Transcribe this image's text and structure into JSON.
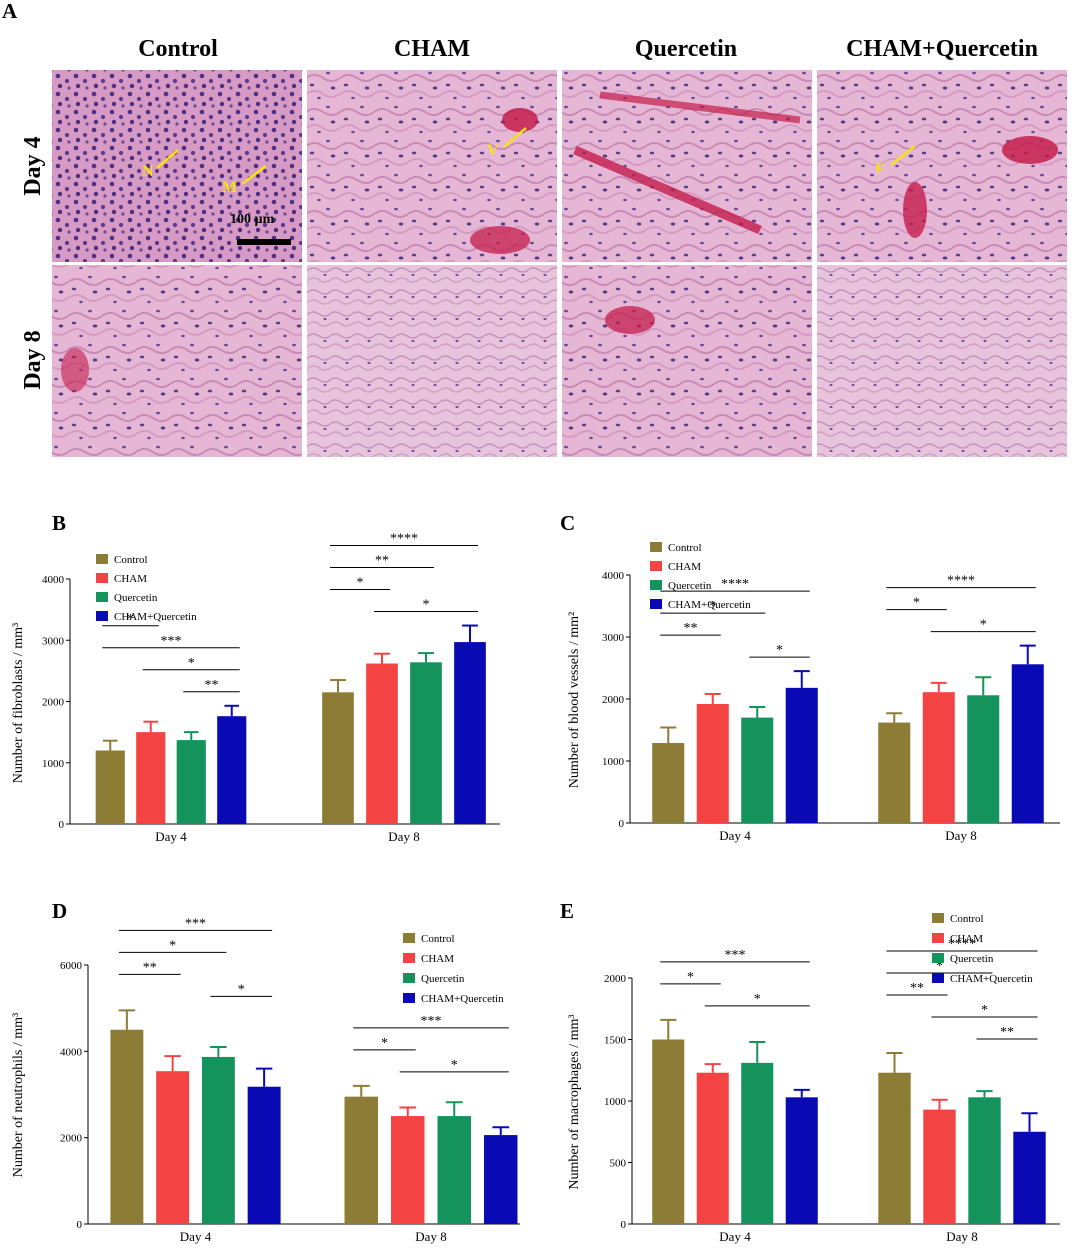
{
  "panel_a": {
    "letter": "A",
    "columns": [
      "Control",
      "CHAM",
      "Quercetin",
      "CHAM+Quercetin"
    ],
    "rows": [
      "Day 4",
      "Day 8"
    ],
    "scale_bar": "100 µm",
    "annotations": [
      {
        "col": 0,
        "row": 0,
        "label": "N"
      },
      {
        "col": 0,
        "row": 0,
        "label": "M"
      },
      {
        "col": 1,
        "row": 0,
        "label": "V"
      },
      {
        "col": 3,
        "row": 0,
        "label": "F"
      }
    ]
  },
  "colors": {
    "Control": "#8d7c35",
    "CHAM": "#f44343",
    "Quercetin": "#14935c",
    "CHAM+Quercetin": "#0a0ab4"
  },
  "chart_data": [
    {
      "letter": "B",
      "type": "bar",
      "categories": [
        "Day 4",
        "Day 8"
      ],
      "ylabel": "Number of fibroblasts / mm³",
      "ylim": [
        0,
        4000
      ],
      "yticks": [
        "0",
        "1000",
        "2000",
        "3000",
        "4000"
      ],
      "legend": "top-left",
      "series": [
        {
          "name": "Control",
          "values": [
            1200,
            2150
          ],
          "errors": [
            160,
            200
          ]
        },
        {
          "name": "CHAM",
          "values": [
            1500,
            2620
          ],
          "errors": [
            170,
            160
          ]
        },
        {
          "name": "Quercetin",
          "values": [
            1370,
            2640
          ],
          "errors": [
            130,
            150
          ]
        },
        {
          "name": "CHAM+Quercetin",
          "values": [
            1760,
            2970
          ],
          "errors": [
            170,
            270
          ]
        }
      ],
      "significance": [
        {
          "label": "*",
          "from": [
            0,
            0
          ],
          "to": [
            0,
            1
          ]
        },
        {
          "label": "***",
          "from": [
            0,
            0
          ],
          "to": [
            0,
            3
          ]
        },
        {
          "label": "*",
          "from": [
            0,
            1
          ],
          "to": [
            0,
            3
          ]
        },
        {
          "label": "**",
          "from": [
            0,
            2
          ],
          "to": [
            0,
            3
          ]
        },
        {
          "label": "****",
          "from": [
            1,
            0
          ],
          "to": [
            1,
            3
          ]
        },
        {
          "label": "**",
          "from": [
            1,
            0
          ],
          "to": [
            1,
            2
          ]
        },
        {
          "label": "*",
          "from": [
            1,
            0
          ],
          "to": [
            1,
            1
          ]
        },
        {
          "label": "*",
          "from": [
            1,
            1
          ],
          "to": [
            1,
            3
          ]
        }
      ]
    },
    {
      "letter": "C",
      "type": "bar",
      "categories": [
        "Day 4",
        "Day 8"
      ],
      "ylabel": "Number of blood vessels / mm²",
      "ylim": [
        0,
        4000
      ],
      "yticks": [
        "0",
        "1000",
        "2000",
        "3000",
        "4000"
      ],
      "legend": "top-left",
      "series": [
        {
          "name": "Control",
          "values": [
            1290,
            1620
          ],
          "errors": [
            250,
            150
          ]
        },
        {
          "name": "CHAM",
          "values": [
            1920,
            2110
          ],
          "errors": [
            160,
            150
          ]
        },
        {
          "name": "Quercetin",
          "values": [
            1700,
            2060
          ],
          "errors": [
            170,
            290
          ]
        },
        {
          "name": "CHAM+Quercetin",
          "values": [
            2180,
            2560
          ],
          "errors": [
            270,
            300
          ]
        }
      ],
      "significance": [
        {
          "label": "****",
          "from": [
            0,
            0
          ],
          "to": [
            0,
            3
          ]
        },
        {
          "label": "*",
          "from": [
            0,
            0
          ],
          "to": [
            0,
            2
          ]
        },
        {
          "label": "**",
          "from": [
            0,
            0
          ],
          "to": [
            0,
            1
          ]
        },
        {
          "label": "*",
          "from": [
            0,
            2
          ],
          "to": [
            0,
            3
          ]
        },
        {
          "label": "****",
          "from": [
            1,
            0
          ],
          "to": [
            1,
            3
          ]
        },
        {
          "label": "*",
          "from": [
            1,
            0
          ],
          "to": [
            1,
            1
          ]
        },
        {
          "label": "*",
          "from": [
            1,
            1
          ],
          "to": [
            1,
            3
          ]
        }
      ]
    },
    {
      "letter": "D",
      "type": "bar",
      "categories": [
        "Day 4",
        "Day 8"
      ],
      "ylabel": "Number of neutrophils / mm³",
      "ylim": [
        0,
        6000
      ],
      "yticks": [
        "0",
        "2000",
        "4000",
        "6000"
      ],
      "legend": "top-right",
      "series": [
        {
          "name": "Control",
          "values": [
            4500,
            2950
          ],
          "errors": [
            450,
            250
          ]
        },
        {
          "name": "CHAM",
          "values": [
            3540,
            2500
          ],
          "errors": [
            350,
            200
          ]
        },
        {
          "name": "Quercetin",
          "values": [
            3870,
            2500
          ],
          "errors": [
            230,
            320
          ]
        },
        {
          "name": "CHAM+Quercetin",
          "values": [
            3180,
            2060
          ],
          "errors": [
            420,
            180
          ]
        }
      ],
      "significance": [
        {
          "label": "***",
          "from": [
            0,
            0
          ],
          "to": [
            0,
            3
          ]
        },
        {
          "label": "*",
          "from": [
            0,
            0
          ],
          "to": [
            0,
            2
          ]
        },
        {
          "label": "**",
          "from": [
            0,
            0
          ],
          "to": [
            0,
            1
          ]
        },
        {
          "label": "*",
          "from": [
            0,
            2
          ],
          "to": [
            0,
            3
          ]
        },
        {
          "label": "***",
          "from": [
            1,
            0
          ],
          "to": [
            1,
            3
          ]
        },
        {
          "label": "*",
          "from": [
            1,
            0
          ],
          "to": [
            1,
            1
          ]
        },
        {
          "label": "*",
          "from": [
            1,
            1
          ],
          "to": [
            1,
            3
          ]
        }
      ]
    },
    {
      "letter": "E",
      "type": "bar",
      "categories": [
        "Day 4",
        "Day 8"
      ],
      "ylabel": "Number of macrophages / mm³",
      "ylim": [
        0,
        2000
      ],
      "yticks": [
        "0",
        "500",
        "1000",
        "1500",
        "2000"
      ],
      "legend": "top-right",
      "series": [
        {
          "name": "Control",
          "values": [
            1500,
            1230
          ],
          "errors": [
            160,
            160
          ]
        },
        {
          "name": "CHAM",
          "values": [
            1230,
            930
          ],
          "errors": [
            70,
            80
          ]
        },
        {
          "name": "Quercetin",
          "values": [
            1310,
            1030
          ],
          "errors": [
            170,
            50
          ]
        },
        {
          "name": "CHAM+Quercetin",
          "values": [
            1030,
            750
          ],
          "errors": [
            60,
            150
          ]
        }
      ],
      "significance": [
        {
          "label": "***",
          "from": [
            0,
            0
          ],
          "to": [
            0,
            3
          ]
        },
        {
          "label": "*",
          "from": [
            0,
            0
          ],
          "to": [
            0,
            1
          ]
        },
        {
          "label": "*",
          "from": [
            0,
            1
          ],
          "to": [
            0,
            3
          ]
        },
        {
          "label": "****",
          "from": [
            1,
            0
          ],
          "to": [
            1,
            3
          ]
        },
        {
          "label": "*",
          "from": [
            1,
            0
          ],
          "to": [
            1,
            2
          ]
        },
        {
          "label": "**",
          "from": [
            1,
            0
          ],
          "to": [
            1,
            1
          ]
        },
        {
          "label": "*",
          "from": [
            1,
            1
          ],
          "to": [
            1,
            3
          ]
        },
        {
          "label": "**",
          "from": [
            1,
            2
          ],
          "to": [
            1,
            3
          ]
        }
      ]
    }
  ]
}
